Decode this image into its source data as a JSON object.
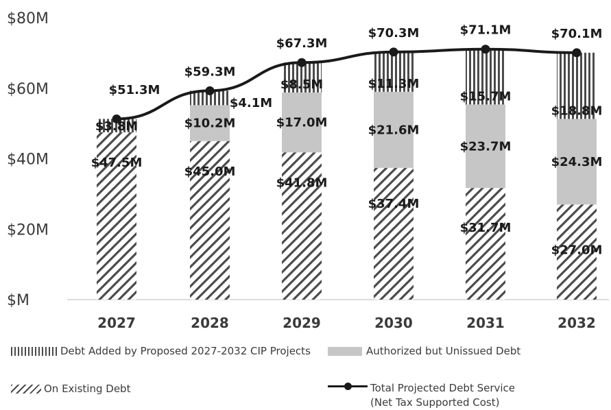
{
  "chart_data": {
    "type": "bar",
    "stacked": true,
    "categories": [
      "2027",
      "2028",
      "2029",
      "2030",
      "2031",
      "2032"
    ],
    "y_ticks": [
      "$M",
      "$20M",
      "$40M",
      "$60M",
      "$80M"
    ],
    "y_tick_values": [
      0,
      20,
      40,
      60,
      80
    ],
    "ylim": [
      0,
      80
    ],
    "series": [
      {
        "name": "On Existing Debt",
        "pattern": "diagonal-hatch",
        "values": [
          47.5,
          45.0,
          41.8,
          37.4,
          31.7,
          27.0
        ],
        "labels": [
          "$47.5M",
          "$45.0M",
          "$41.8M",
          "$37.4M",
          "$31.7M",
          "$27.0M"
        ]
      },
      {
        "name": "Authorized but Unissued Debt",
        "pattern": "solid-gray",
        "values": [
          0,
          10.2,
          17.0,
          21.6,
          23.7,
          24.3
        ],
        "labels": [
          "",
          "$10.2M",
          "$17.0M",
          "$21.6M",
          "$23.7M",
          "$24.3M"
        ]
      },
      {
        "name": "Debt Added by Proposed 2027-2032 CIP Projects",
        "pattern": "vertical-hatch",
        "values": [
          3.8,
          4.1,
          8.5,
          11.3,
          15.7,
          18.8
        ],
        "labels": [
          "$3.8M",
          "$4.1M",
          "$8.5M",
          "$11.3M",
          "$15.7M",
          "$18.8M"
        ]
      }
    ],
    "line": {
      "name": "Total Projected Debt Service (Net Tax Supported Cost)",
      "values": [
        51.3,
        59.3,
        67.3,
        70.3,
        71.1,
        70.1
      ],
      "labels": [
        "$51.3M",
        "$59.3M",
        "$67.3M",
        "$70.3M",
        "$71.1M",
        "$70.1M"
      ]
    },
    "legend": {
      "new_cip": "Debt Added by Proposed 2027-2032 CIP Projects",
      "authorized": "Authorized but Unissued Debt",
      "existing": "On Existing Debt",
      "total_line1": "Total Projected Debt Service",
      "total_line2": "(Net Tax Supported Cost)"
    },
    "legend_placement": "bottom",
    "grid": false,
    "colors": {
      "hatch": "#4a4a4a",
      "authorized": "#c6c6c6",
      "line": "#1a1a1a",
      "axis": "#d0d0d0",
      "text": "#3a3a3a"
    }
  }
}
